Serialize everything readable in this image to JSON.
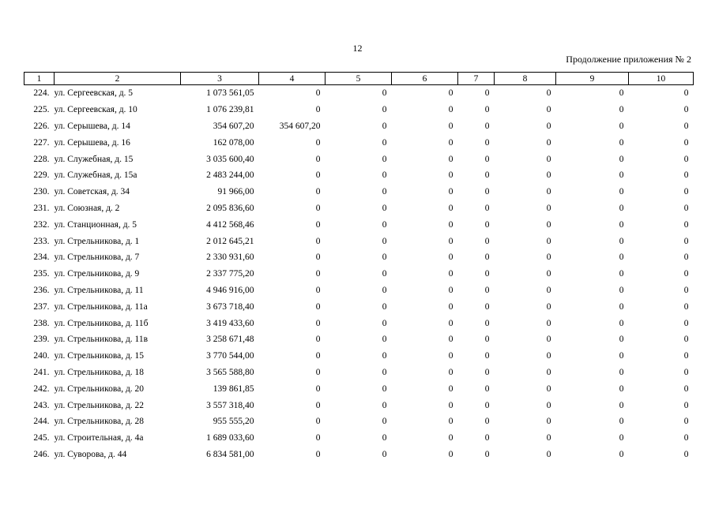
{
  "page_number": "12",
  "appendix_note": "Продолжение приложения № 2",
  "table": {
    "headers": [
      "1",
      "2",
      "3",
      "4",
      "5",
      "6",
      "7",
      "8",
      "9",
      "10"
    ],
    "rows": [
      [
        "224.",
        "ул. Сергеевская, д. 5",
        "1 073 561,05",
        "0",
        "0",
        "0",
        "0",
        "0",
        "0",
        "0"
      ],
      [
        "225.",
        "ул. Сергеевская, д. 10",
        "1 076 239,81",
        "0",
        "0",
        "0",
        "0",
        "0",
        "0",
        "0"
      ],
      [
        "226.",
        "ул. Серышева, д. 14",
        "354 607,20",
        "354 607,20",
        "0",
        "0",
        "0",
        "0",
        "0",
        "0"
      ],
      [
        "227.",
        "ул. Серышева, д. 16",
        "162 078,00",
        "0",
        "0",
        "0",
        "0",
        "0",
        "0",
        "0"
      ],
      [
        "228.",
        "ул. Служебная, д. 15",
        "3 035 600,40",
        "0",
        "0",
        "0",
        "0",
        "0",
        "0",
        "0"
      ],
      [
        "229.",
        "ул. Служебная, д. 15а",
        "2 483 244,00",
        "0",
        "0",
        "0",
        "0",
        "0",
        "0",
        "0"
      ],
      [
        "230.",
        "ул. Советская, д. 34",
        "91 966,00",
        "0",
        "0",
        "0",
        "0",
        "0",
        "0",
        "0"
      ],
      [
        "231.",
        "ул. Союзная, д. 2",
        "2 095 836,60",
        "0",
        "0",
        "0",
        "0",
        "0",
        "0",
        "0"
      ],
      [
        "232.",
        "ул. Станционная, д. 5",
        "4 412 568,46",
        "0",
        "0",
        "0",
        "0",
        "0",
        "0",
        "0"
      ],
      [
        "233.",
        "ул. Стрельникова, д. 1",
        "2 012 645,21",
        "0",
        "0",
        "0",
        "0",
        "0",
        "0",
        "0"
      ],
      [
        "234.",
        "ул. Стрельникова, д. 7",
        "2 330 931,60",
        "0",
        "0",
        "0",
        "0",
        "0",
        "0",
        "0"
      ],
      [
        "235.",
        "ул. Стрельникова, д. 9",
        "2 337 775,20",
        "0",
        "0",
        "0",
        "0",
        "0",
        "0",
        "0"
      ],
      [
        "236.",
        "ул. Стрельникова, д. 11",
        "4 946 916,00",
        "0",
        "0",
        "0",
        "0",
        "0",
        "0",
        "0"
      ],
      [
        "237.",
        "ул. Стрельникова, д. 11а",
        "3 673 718,40",
        "0",
        "0",
        "0",
        "0",
        "0",
        "0",
        "0"
      ],
      [
        "238.",
        "ул. Стрельникова, д. 11б",
        "3 419 433,60",
        "0",
        "0",
        "0",
        "0",
        "0",
        "0",
        "0"
      ],
      [
        "239.",
        "ул. Стрельникова, д. 11в",
        "3 258 671,48",
        "0",
        "0",
        "0",
        "0",
        "0",
        "0",
        "0"
      ],
      [
        "240.",
        "ул. Стрельникова, д. 15",
        "3 770 544,00",
        "0",
        "0",
        "0",
        "0",
        "0",
        "0",
        "0"
      ],
      [
        "241.",
        "ул. Стрельникова, д. 18",
        "3 565 588,80",
        "0",
        "0",
        "0",
        "0",
        "0",
        "0",
        "0"
      ],
      [
        "242.",
        "ул. Стрельникова, д. 20",
        "139 861,85",
        "0",
        "0",
        "0",
        "0",
        "0",
        "0",
        "0"
      ],
      [
        "243.",
        "ул. Стрельникова, д. 22",
        "3 557 318,40",
        "0",
        "0",
        "0",
        "0",
        "0",
        "0",
        "0"
      ],
      [
        "244.",
        "ул. Стрельникова, д. 28",
        "955 555,20",
        "0",
        "0",
        "0",
        "0",
        "0",
        "0",
        "0"
      ],
      [
        "245.",
        "ул. Строительная, д. 4а",
        "1 689 033,60",
        "0",
        "0",
        "0",
        "0",
        "0",
        "0",
        "0"
      ],
      [
        "246.",
        "ул. Суворова, д. 44",
        "6 834 581,00",
        "0",
        "0",
        "0",
        "0",
        "0",
        "0",
        "0"
      ]
    ]
  }
}
